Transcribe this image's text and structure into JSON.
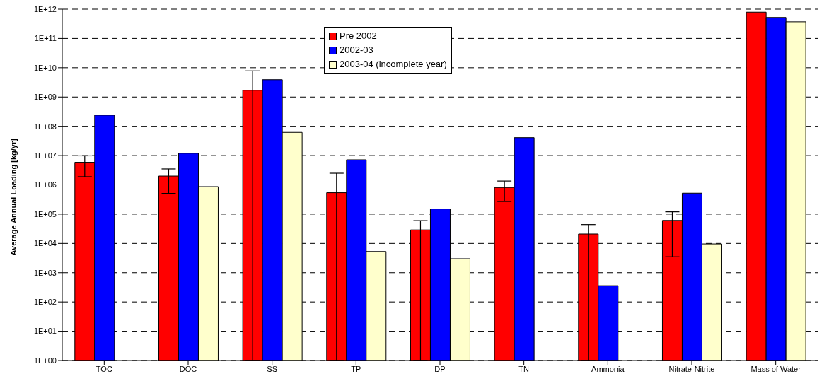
{
  "chart_data": {
    "type": "bar",
    "ylabel": "Average Annual Loading [kg/yr]",
    "categories": [
      "TOC",
      "DOC",
      "SS",
      "TP",
      "DP",
      "TN",
      "Ammonia",
      "Nitrate-Nitrite",
      "Mass of Water"
    ],
    "series": [
      {
        "name": "Pre 2002",
        "color": "#ff0000",
        "values": [
          5900000.0,
          2000000.0,
          1700000000.0,
          540000.0,
          29000.0,
          810000.0,
          21000.0,
          61000.0,
          790000000000.0
        ],
        "errors": [
          [
            1900000.0,
            9800000.0
          ],
          [
            510000.0,
            3500000.0
          ],
          [
            1,
            7800000000.0
          ],
          [
            1,
            2500000.0
          ],
          [
            1,
            60000.0
          ],
          [
            270000.0,
            1350000.0
          ],
          [
            1,
            44000.0
          ],
          [
            3500.0,
            120000.0
          ],
          null
        ]
      },
      {
        "name": "2002-03",
        "color": "#0000ff",
        "values": [
          240000000.0,
          12000000.0,
          3900000000.0,
          7200000.0,
          150000.0,
          41000000.0,
          360.0,
          520000.0,
          520000000000.0
        ]
      },
      {
        "name": "2003-04 (incomplete year)",
        "color": "#ffffcc",
        "values": [
          null,
          870000.0,
          62000000.0,
          5300.0,
          3000.0,
          null,
          null,
          9600.0,
          370000000000.0
        ]
      }
    ],
    "log": true,
    "ylim": [
      1,
      1000000000000.0
    ],
    "yticks": [
      {
        "value": 1,
        "label": "1E+00"
      },
      {
        "value": 10,
        "label": "1E+01"
      },
      {
        "value": 100,
        "label": "1E+02"
      },
      {
        "value": 1000.0,
        "label": "1E+03"
      },
      {
        "value": 10000.0,
        "label": "1E+04"
      },
      {
        "value": 100000.0,
        "label": "1E+05"
      },
      {
        "value": 1000000.0,
        "label": "1E+06"
      },
      {
        "value": 10000000.0,
        "label": "1E+07"
      },
      {
        "value": 100000000.0,
        "label": "1E+08"
      },
      {
        "value": 1000000000.0,
        "label": "1E+09"
      },
      {
        "value": 10000000000.0,
        "label": "1E+10"
      },
      {
        "value": 100000000000.0,
        "label": "1E+11"
      },
      {
        "value": 1000000000000.0,
        "label": "1E+12"
      }
    ],
    "grid": "y",
    "legend": "top"
  }
}
